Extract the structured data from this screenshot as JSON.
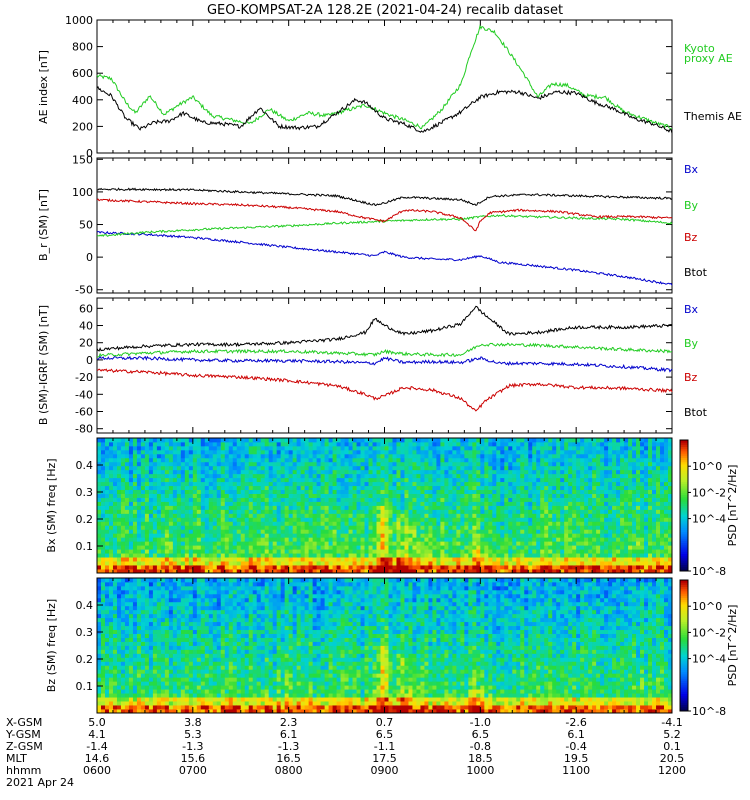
{
  "title": "GEO-KOMPSAT-2A 128.2E (2021-04-24) recalib dataset",
  "colors": {
    "black": "#000000",
    "red": "#cc0000",
    "green": "#22cc22",
    "blue": "#0000cc"
  },
  "x_range": [
    "06:00",
    "12:00"
  ],
  "chart_data": [
    {
      "type": "line",
      "panel": "ae",
      "ylabel": "AE index [nT]",
      "ylim": [
        0,
        1000
      ],
      "yticks": [
        0,
        200,
        400,
        600,
        800,
        1000
      ],
      "series": [
        {
          "name": "Kyoto proxy AE",
          "label_lines": [
            "Kyoto",
            "proxy AE"
          ],
          "color": "green",
          "x": [
            6.0,
            6.15,
            6.3,
            6.4,
            6.55,
            6.7,
            6.85,
            7.0,
            7.2,
            7.4,
            7.6,
            7.8,
            8.0,
            8.2,
            8.4,
            8.6,
            8.8,
            9.0,
            9.2,
            9.4,
            9.6,
            9.8,
            9.9,
            10.0,
            10.15,
            10.3,
            10.45,
            10.6,
            10.75,
            10.9,
            11.1,
            11.3,
            11.5,
            11.7,
            11.85,
            12.0
          ],
          "y": [
            580,
            560,
            380,
            300,
            430,
            290,
            360,
            420,
            280,
            250,
            220,
            330,
            240,
            300,
            280,
            320,
            360,
            300,
            250,
            190,
            330,
            520,
            760,
            950,
            910,
            760,
            600,
            420,
            520,
            510,
            430,
            420,
            310,
            260,
            220,
            190
          ]
        },
        {
          "name": "Themis AE",
          "label_lines": [
            "Themis AE"
          ],
          "color": "black",
          "x": [
            6.0,
            6.15,
            6.3,
            6.45,
            6.6,
            6.75,
            6.9,
            7.1,
            7.3,
            7.5,
            7.7,
            7.9,
            8.1,
            8.3,
            8.5,
            8.7,
            8.8,
            9.0,
            9.2,
            9.4,
            9.6,
            9.8,
            10.0,
            10.2,
            10.4,
            10.6,
            10.8,
            11.0,
            11.2,
            11.4,
            11.6,
            11.8,
            12.0
          ],
          "y": [
            490,
            430,
            260,
            180,
            230,
            240,
            300,
            230,
            220,
            200,
            340,
            200,
            190,
            200,
            300,
            400,
            380,
            260,
            220,
            160,
            230,
            310,
            420,
            460,
            460,
            410,
            460,
            450,
            380,
            330,
            260,
            220,
            160
          ]
        }
      ]
    },
    {
      "type": "line",
      "panel": "b",
      "ylabel": "B_r (SM) [nT]",
      "ylim": [
        -55,
        152
      ],
      "yticks": [
        -50,
        0,
        50,
        100,
        150
      ],
      "series": [
        {
          "name": "Bx",
          "color": "blue",
          "x": [
            6.0,
            6.5,
            7.0,
            7.5,
            8.0,
            8.5,
            8.9,
            9.0,
            9.2,
            9.5,
            9.8,
            10.0,
            10.2,
            10.5,
            11.0,
            11.5,
            12.0
          ],
          "y": [
            38,
            35,
            30,
            23,
            15,
            8,
            2,
            8,
            0,
            -3,
            -4,
            2,
            -8,
            -12,
            -20,
            -30,
            -42
          ]
        },
        {
          "name": "By",
          "color": "green",
          "x": [
            6.0,
            6.5,
            7.0,
            7.5,
            8.0,
            8.5,
            9.0,
            9.5,
            9.8,
            10.0,
            10.2,
            10.5,
            11.0,
            11.5,
            12.0
          ],
          "y": [
            32,
            38,
            42,
            45,
            48,
            52,
            55,
            58,
            58,
            62,
            64,
            62,
            60,
            58,
            52
          ]
        },
        {
          "name": "Bz",
          "color": "red",
          "x": [
            6.0,
            6.5,
            7.0,
            7.5,
            8.0,
            8.5,
            8.8,
            9.0,
            9.2,
            9.5,
            9.8,
            9.95,
            10.0,
            10.1,
            10.4,
            10.8,
            11.2,
            11.6,
            12.0
          ],
          "y": [
            88,
            85,
            82,
            80,
            76,
            70,
            60,
            55,
            72,
            70,
            60,
            40,
            55,
            68,
            72,
            70,
            62,
            62,
            60
          ]
        },
        {
          "name": "Btot",
          "color": "black",
          "x": [
            6.0,
            6.5,
            7.0,
            7.5,
            8.0,
            8.5,
            8.9,
            9.0,
            9.2,
            9.5,
            9.8,
            9.95,
            10.1,
            10.5,
            11.0,
            11.5,
            12.0
          ],
          "y": [
            104,
            104,
            103,
            100,
            97,
            94,
            80,
            83,
            92,
            90,
            88,
            80,
            93,
            96,
            94,
            92,
            90
          ]
        }
      ]
    },
    {
      "type": "line",
      "panel": "db",
      "ylabel": "B (SM)-IGRF (SM) [nT]",
      "ylim": [
        -85,
        72
      ],
      "yticks": [
        -80,
        -60,
        -40,
        -20,
        0,
        20,
        40,
        60
      ],
      "series": [
        {
          "name": "Bx",
          "color": "blue",
          "x": [
            6.0,
            6.5,
            7.0,
            7.5,
            8.0,
            8.5,
            8.9,
            9.0,
            9.2,
            9.5,
            9.8,
            10.0,
            10.2,
            10.6,
            11.0,
            11.5,
            12.0
          ],
          "y": [
            2,
            2,
            0,
            -1,
            -1,
            -2,
            -4,
            2,
            -3,
            -2,
            -3,
            2,
            -4,
            -4,
            -5,
            -8,
            -12
          ]
        },
        {
          "name": "By",
          "color": "green",
          "x": [
            6.0,
            6.5,
            7.0,
            7.5,
            8.0,
            8.5,
            8.9,
            9.0,
            9.2,
            9.5,
            9.8,
            10.0,
            10.2,
            10.6,
            11.0,
            11.5,
            12.0
          ],
          "y": [
            5,
            8,
            10,
            10,
            10,
            8,
            6,
            10,
            7,
            6,
            6,
            18,
            18,
            17,
            15,
            12,
            10
          ]
        },
        {
          "name": "Bz",
          "color": "red",
          "x": [
            6.0,
            6.5,
            7.0,
            7.5,
            8.0,
            8.5,
            8.8,
            8.9,
            9.0,
            9.2,
            9.5,
            9.8,
            9.95,
            10.05,
            10.3,
            10.6,
            11.0,
            11.5,
            12.0
          ],
          "y": [
            -12,
            -14,
            -18,
            -20,
            -24,
            -30,
            -40,
            -45,
            -42,
            -32,
            -35,
            -45,
            -60,
            -48,
            -30,
            -28,
            -32,
            -33,
            -36
          ]
        },
        {
          "name": "Btot",
          "color": "black",
          "x": [
            6.0,
            6.5,
            7.0,
            7.5,
            8.0,
            8.5,
            8.8,
            8.9,
            9.0,
            9.2,
            9.5,
            9.8,
            9.95,
            10.05,
            10.3,
            10.6,
            11.0,
            11.5,
            12.0
          ],
          "y": [
            12,
            16,
            18,
            18,
            20,
            24,
            32,
            48,
            40,
            30,
            34,
            42,
            62,
            52,
            30,
            32,
            38,
            38,
            40
          ]
        }
      ]
    },
    {
      "type": "heatmap",
      "panel": "bx_spec",
      "ylabel": "Bx (SM) freq [Hz]",
      "ylim": [
        0,
        0.5
      ],
      "yticks": [
        0.1,
        0.2,
        0.3,
        0.4
      ],
      "zlabel": "PSD [nT^2/Hz]",
      "zrange_exp": [
        -8,
        2
      ],
      "zticks": [
        "10^0",
        "10^-2",
        "10^-4",
        "10^-8"
      ]
    },
    {
      "type": "heatmap",
      "panel": "bz_spec",
      "ylabel": "Bz (SM) freq [Hz]",
      "ylim": [
        0,
        0.5
      ],
      "yticks": [
        0.1,
        0.2,
        0.3,
        0.4
      ],
      "zlabel": "PSD [nT^2/Hz]",
      "zrange_exp": [
        -8,
        2
      ],
      "zticks": [
        "10^0",
        "10^-2",
        "10^-4",
        "10^-8"
      ]
    }
  ],
  "ephemeris": {
    "rows": [
      {
        "label": "X-GSM",
        "values": [
          "5.0",
          "3.8",
          "2.3",
          "0.7",
          "-1.0",
          "-2.6",
          "-4.1"
        ]
      },
      {
        "label": "Y-GSM",
        "values": [
          "4.1",
          "5.3",
          "6.1",
          "6.5",
          "6.5",
          "6.1",
          "5.2"
        ]
      },
      {
        "label": "Z-GSM",
        "values": [
          "-1.4",
          "-1.3",
          "-1.3",
          "-1.1",
          "-0.8",
          "-0.4",
          "0.1"
        ]
      },
      {
        "label": "MLT",
        "values": [
          "14.6",
          "15.6",
          "16.5",
          "17.5",
          "18.5",
          "19.5",
          "20.5"
        ]
      },
      {
        "label": "hhmm",
        "values": [
          "0600",
          "0700",
          "0800",
          "0900",
          "1000",
          "1100",
          "1200"
        ]
      }
    ],
    "date": "2021 Apr 24"
  }
}
